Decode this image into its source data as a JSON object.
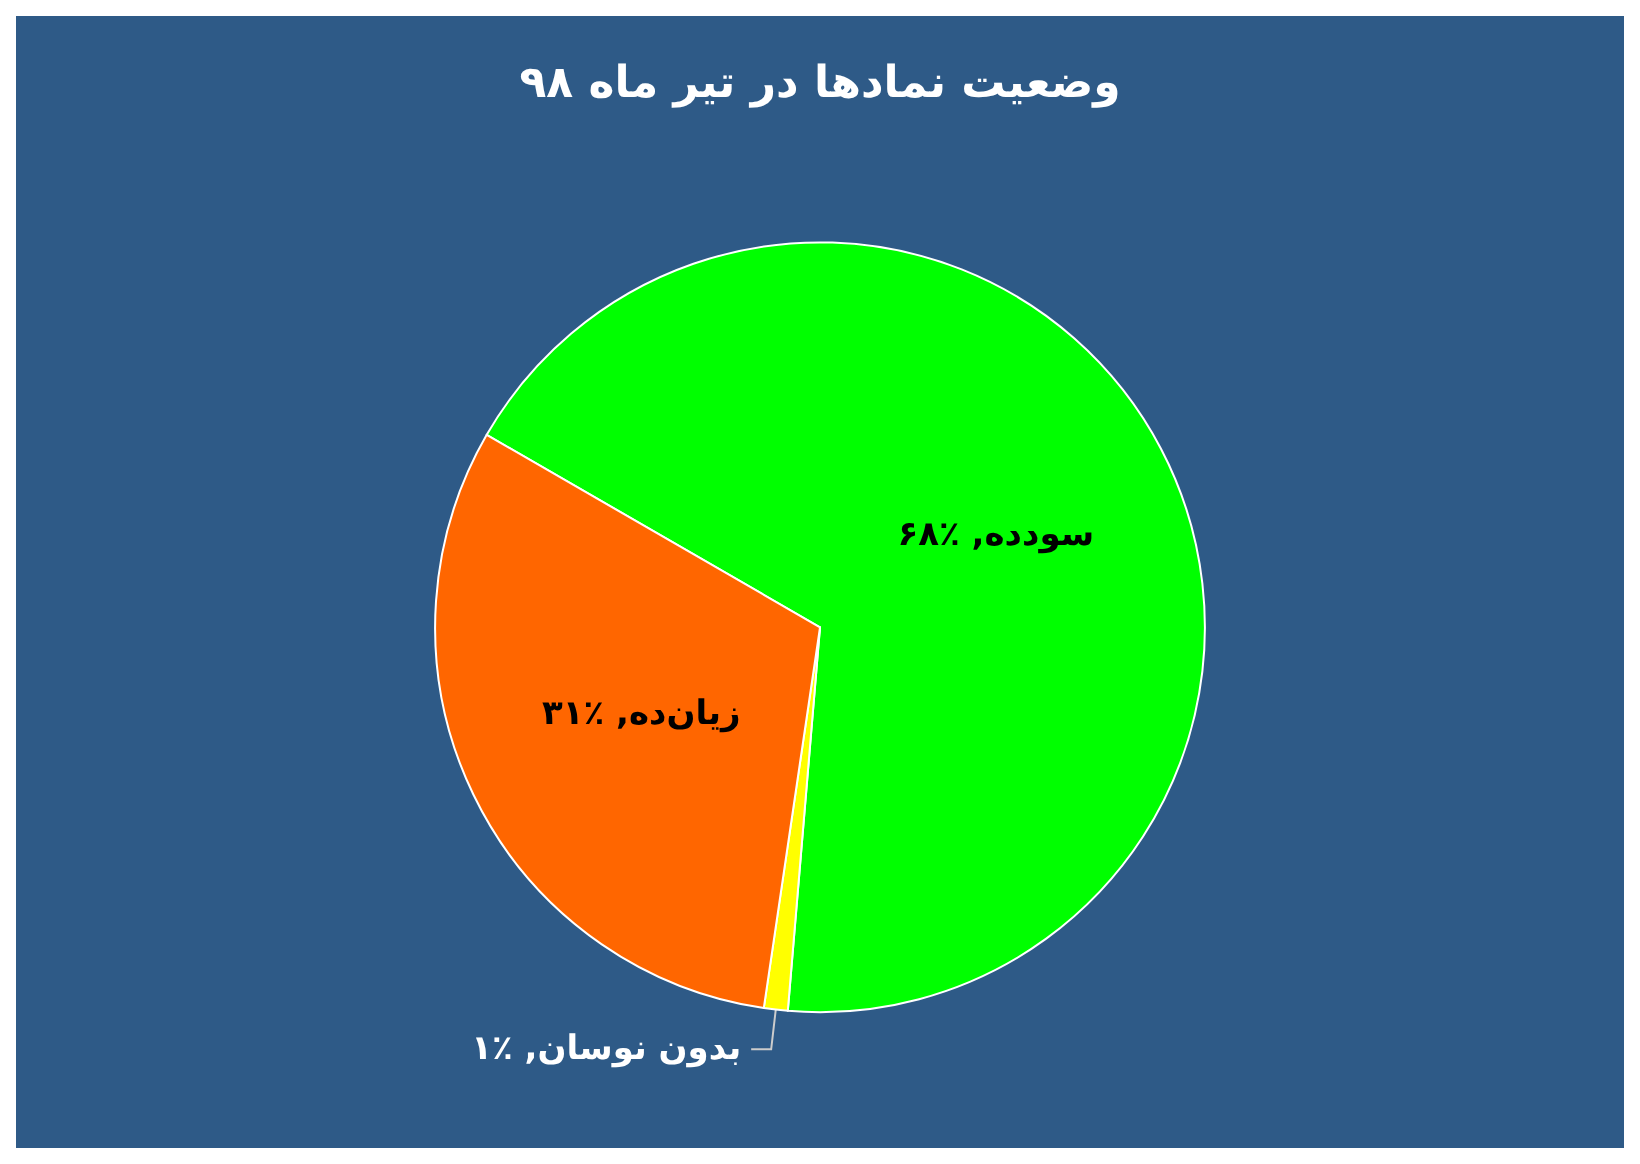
{
  "chart_data": {
    "type": "pie",
    "title": "وضعیت نمادها در تیر ماه ۹۸",
    "categories": [
      "سودده",
      "بدون نوسان",
      "زیان‌ده"
    ],
    "values": [
      68,
      1,
      31
    ],
    "value_labels": [
      "۶۸٪",
      "۱٪",
      "۳۱٪"
    ],
    "colors": [
      "#00ff00",
      "#ffff00",
      "#ff6600"
    ],
    "legend": false
  }
}
